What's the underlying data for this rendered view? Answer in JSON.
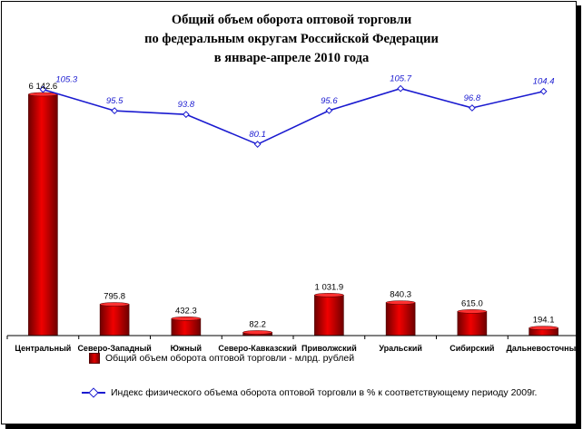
{
  "title": {
    "line1": "Общий объем оборота оптовой торговли",
    "line2": "по федеральным округам Российской Федерации",
    "line3": "в январе-апреле 2010 года"
  },
  "chart_data": {
    "type": "bar",
    "title": "Общий объем оборота оптовой торговли по федеральным округам Российской Федерации в январе-апреле 2010 года",
    "categories": [
      "Центральный",
      "Северо-Западный",
      "Южный",
      "Северо-Кавказский",
      "Приволжский",
      "Уральский",
      "Сибирский",
      "Дальневосточный"
    ],
    "series": [
      {
        "name": "Общий объем оборота оптовой торговли - млрд. рублей",
        "type": "bar",
        "values": [
          6142.6,
          795.8,
          432.3,
          82.2,
          1031.9,
          840.3,
          615.0,
          194.1
        ],
        "labels": [
          "6 142.6",
          "795.8",
          "432.3",
          "82.2",
          "1 031.9",
          "840.3",
          "615.0",
          "194.1"
        ],
        "color": "#d40000"
      },
      {
        "name": "Индекс физического объема оборота оптовой торговли в % к соответствующему периоду 2009г.",
        "type": "line",
        "values": [
          105.3,
          95.5,
          93.8,
          80.1,
          95.6,
          105.7,
          96.8,
          104.4
        ],
        "labels": [
          "105.3",
          "95.5",
          "93.8",
          "80.1",
          "95.6",
          "105.7",
          "96.8",
          "104.4"
        ],
        "color": "#1a1ad0"
      }
    ],
    "grid": false,
    "legend": "bottom"
  },
  "legend": {
    "bar_label": "Общий объем оборота оптовой торговли - млрд. рублей",
    "line_label": "Индекс физического объема оборота оптовой торговли в % к соответствующему периоду 2009г."
  }
}
